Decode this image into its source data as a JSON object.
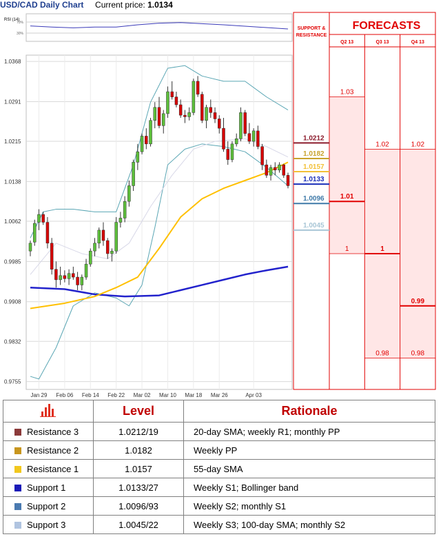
{
  "header": {
    "title": "USD/CAD Daily Chart",
    "price_label": "Current price:",
    "price_value": "1.0134"
  },
  "colors": {
    "red": "#e10000",
    "panel_bg": "#ffe6e6",
    "sma20": "#7f7fc6",
    "sma55": "#ffc000",
    "sma100": "#2222cc",
    "bollinger": "#5aa6b4",
    "bull": "#5dbe3b",
    "bear": "#d60000",
    "r3": "#8b1a2b",
    "r2": "#c8a22c",
    "r1": "#f2c037",
    "s1": "#1a2fb8",
    "s2": "#3f7aa8",
    "s3": "#a8c6d6"
  },
  "rsi": {
    "label": "RSI (14)",
    "levels": [
      "70%",
      "30%"
    ]
  },
  "chart_data": {
    "type": "candlestick",
    "ylim": [
      0.974,
      1.038
    ],
    "y_ticks": [
      "1.0368",
      "1.0291",
      "1.0215",
      "1.0138",
      "1.0062",
      "0.9985",
      "0.9908",
      "0.9832",
      "0.9755"
    ],
    "x_ticks": [
      "Jan 29",
      "Feb 06",
      "Feb 14",
      "Feb 22",
      "Mar 02",
      "Mar 10",
      "Mar 18",
      "Mar 26",
      "Apr 03"
    ],
    "candles": [
      [
        1.0005,
        1.0025,
        0.9995,
        1.002
      ],
      [
        1.0022,
        1.0065,
        1.0015,
        1.0058
      ],
      [
        1.006,
        1.0085,
        1.0045,
        1.0075
      ],
      [
        1.0075,
        1.008,
        1.0055,
        1.006
      ],
      [
        1.006,
        1.007,
        1.001,
        1.002
      ],
      [
        1.002,
        1.003,
        0.996,
        0.997
      ],
      [
        0.997,
        0.9985,
        0.9935,
        0.995
      ],
      [
        0.995,
        0.9975,
        0.994,
        0.9958
      ],
      [
        0.9958,
        0.9968,
        0.9945,
        0.9952
      ],
      [
        0.9952,
        0.997,
        0.994,
        0.9962
      ],
      [
        0.9962,
        0.9975,
        0.995,
        0.9955
      ],
      [
        0.9955,
        0.9965,
        0.993,
        0.994
      ],
      [
        0.994,
        0.996,
        0.993,
        0.9955
      ],
      [
        0.9955,
        0.999,
        0.995,
        0.998
      ],
      [
        0.998,
        1.001,
        0.9975,
        1.0005
      ],
      [
        1.0005,
        1.003,
        0.9995,
        1.002
      ],
      [
        1.002,
        1.005,
        1.001,
        1.0045
      ],
      [
        1.0045,
        1.006,
        1.0015,
        1.0025
      ],
      [
        1.0025,
        1.003,
        0.999,
        1.0
      ],
      [
        1.0,
        1.001,
        0.9985,
        1.0005
      ],
      [
        1.0005,
        1.007,
        1.0,
        1.006
      ],
      [
        1.006,
        1.008,
        1.005,
        1.0068
      ],
      [
        1.0068,
        1.011,
        1.006,
        1.01
      ],
      [
        1.01,
        1.014,
        1.009,
        1.013
      ],
      [
        1.013,
        1.018,
        1.012,
        1.0175
      ],
      [
        1.0175,
        1.021,
        1.016,
        1.0195
      ],
      [
        1.0195,
        1.023,
        1.019,
        1.0225
      ],
      [
        1.0225,
        1.024,
        1.02,
        1.021
      ],
      [
        1.021,
        1.026,
        1.0205,
        1.0255
      ],
      [
        1.0255,
        1.029,
        1.024,
        1.028
      ],
      [
        1.028,
        1.03,
        1.024,
        1.0245
      ],
      [
        1.0245,
        1.0275,
        1.023,
        1.0268
      ],
      [
        1.0268,
        1.032,
        1.026,
        1.031
      ],
      [
        1.031,
        1.033,
        1.0295,
        1.03
      ],
      [
        1.03,
        1.031,
        1.028,
        1.0285
      ],
      [
        1.0285,
        1.0295,
        1.026,
        1.0265
      ],
      [
        1.0265,
        1.0275,
        1.025,
        1.0262
      ],
      [
        1.0262,
        1.028,
        1.0255,
        1.027
      ],
      [
        1.027,
        1.0335,
        1.0265,
        1.033
      ],
      [
        1.033,
        1.034,
        1.03,
        1.0305
      ],
      [
        1.0305,
        1.031,
        1.025,
        1.0255
      ],
      [
        1.0255,
        1.0285,
        1.024,
        1.028
      ],
      [
        1.028,
        1.0295,
        1.026,
        1.027
      ],
      [
        1.027,
        1.028,
        1.025,
        1.0258
      ],
      [
        1.0258,
        1.0265,
        1.023,
        1.024
      ],
      [
        1.024,
        1.026,
        1.0195,
        1.02
      ],
      [
        1.02,
        1.0215,
        1.017,
        1.018
      ],
      [
        1.018,
        1.0215,
        1.0175,
        1.021
      ],
      [
        1.021,
        1.023,
        1.0205,
        1.022
      ],
      [
        1.022,
        1.028,
        1.0215,
        1.027
      ],
      [
        1.027,
        1.0275,
        1.0225,
        1.023
      ],
      [
        1.023,
        1.025,
        1.021,
        1.0215
      ],
      [
        1.0215,
        1.024,
        1.0205,
        1.0235
      ],
      [
        1.0235,
        1.0245,
        1.02,
        1.0205
      ],
      [
        1.0205,
        1.021,
        1.016,
        1.017
      ],
      [
        1.017,
        1.018,
        1.0145,
        1.015
      ],
      [
        1.015,
        1.017,
        1.014,
        1.0165
      ],
      [
        1.0165,
        1.0175,
        1.015,
        1.016
      ],
      [
        1.016,
        1.0175,
        1.0155,
        1.017
      ],
      [
        1.017,
        1.0172,
        1.0145,
        1.015
      ],
      [
        1.015,
        1.0155,
        1.0125,
        1.013
      ]
    ],
    "levels": [
      {
        "name": "Resistance 3",
        "value": 1.0212,
        "label": "1.0212",
        "color_key": "r3"
      },
      {
        "name": "Resistance 2",
        "value": 1.0182,
        "label": "1.0182",
        "color_key": "r2"
      },
      {
        "name": "Resistance 1",
        "value": 1.0157,
        "label": "1.0157",
        "color_key": "r1"
      },
      {
        "name": "Support 1",
        "value": 1.0133,
        "label": "1.0133",
        "color_key": "s1"
      },
      {
        "name": "Support 2",
        "value": 1.0096,
        "label": "1.0096",
        "color_key": "s2"
      },
      {
        "name": "Support 3",
        "value": 1.0045,
        "label": "1.0045",
        "color_key": "s3"
      }
    ],
    "sma20": [
      [
        0,
        0.996
      ],
      [
        6,
        1.002
      ],
      [
        12,
        1.0
      ],
      [
        18,
        0.999
      ],
      [
        23,
        1.002
      ],
      [
        28,
        1.009
      ],
      [
        33,
        1.015
      ],
      [
        38,
        1.02
      ],
      [
        43,
        1.0215
      ],
      [
        50,
        1.022
      ],
      [
        55,
        1.0205
      ],
      [
        60,
        1.0185
      ]
    ],
    "sma55": [
      [
        0,
        0.9895
      ],
      [
        8,
        0.9905
      ],
      [
        15,
        0.9918
      ],
      [
        20,
        0.9935
      ],
      [
        25,
        0.9955
      ],
      [
        30,
        1.001
      ],
      [
        35,
        1.007
      ],
      [
        40,
        1.0105
      ],
      [
        45,
        1.0125
      ],
      [
        50,
        1.014
      ],
      [
        55,
        1.0155
      ],
      [
        60,
        1.0175
      ]
    ],
    "sma100": [
      [
        0,
        0.9935
      ],
      [
        8,
        0.9932
      ],
      [
        15,
        0.9922
      ],
      [
        22,
        0.9918
      ],
      [
        30,
        0.992
      ],
      [
        35,
        0.993
      ],
      [
        40,
        0.994
      ],
      [
        45,
        0.995
      ],
      [
        50,
        0.996
      ],
      [
        55,
        0.9968
      ],
      [
        60,
        0.9975
      ]
    ],
    "boll_upper": [
      [
        0,
        1.003
      ],
      [
        3,
        1.008
      ],
      [
        6,
        1.0085
      ],
      [
        10,
        1.0085
      ],
      [
        15,
        1.008
      ],
      [
        20,
        1.008
      ],
      [
        24,
        1.017
      ],
      [
        28,
        1.029
      ],
      [
        32,
        1.0355
      ],
      [
        36,
        1.036
      ],
      [
        40,
        1.034
      ],
      [
        45,
        1.033
      ],
      [
        50,
        1.033
      ],
      [
        55,
        1.03
      ],
      [
        60,
        1.0275
      ]
    ],
    "boll_lower": [
      [
        0,
        0.9765
      ],
      [
        2,
        0.976
      ],
      [
        6,
        0.982
      ],
      [
        10,
        0.99
      ],
      [
        15,
        0.9925
      ],
      [
        20,
        0.9915
      ],
      [
        23,
        0.99
      ],
      [
        26,
        0.994
      ],
      [
        29,
        1.005
      ],
      [
        32,
        1.017
      ],
      [
        36,
        1.02
      ],
      [
        40,
        1.021
      ],
      [
        45,
        1.0205
      ],
      [
        50,
        1.0195
      ],
      [
        55,
        1.0165
      ],
      [
        60,
        1.013
      ]
    ],
    "rsi_line": [
      [
        0,
        56
      ],
      [
        5,
        52
      ],
      [
        10,
        49
      ],
      [
        15,
        52
      ],
      [
        20,
        52
      ],
      [
        25,
        60
      ],
      [
        30,
        66
      ],
      [
        35,
        68
      ],
      [
        40,
        64
      ],
      [
        45,
        60
      ],
      [
        50,
        55
      ],
      [
        55,
        50
      ],
      [
        60,
        45
      ]
    ]
  },
  "forecast": {
    "title": "FORECASTS",
    "sr_label": "SUPPORT & RESISTANCE",
    "quarters": [
      "Q2 13",
      "Q3 13",
      "Q4 13"
    ],
    "ylim": [
      0.974,
      1.038
    ],
    "values": [
      {
        "q": 0,
        "value": 1.03,
        "label": "1.03",
        "bold": false
      },
      {
        "q": 0,
        "value": 1.01,
        "label": "1.01",
        "bold": true
      },
      {
        "q": 0,
        "value": 1.0,
        "label": "1",
        "bold": false
      },
      {
        "q": 1,
        "value": 1.02,
        "label": "1.02",
        "bold": false
      },
      {
        "q": 1,
        "value": 1.0,
        "label": "1",
        "bold": true
      },
      {
        "q": 1,
        "value": 0.98,
        "label": "0.98",
        "bold": false
      },
      {
        "q": 2,
        "value": 1.02,
        "label": "1.02",
        "bold": false
      },
      {
        "q": 2,
        "value": 0.99,
        "label": "0.99",
        "bold": true
      },
      {
        "q": 2,
        "value": 0.98,
        "label": "0.98",
        "bold": false
      }
    ]
  },
  "table": {
    "headers": [
      "Level",
      "Rationale"
    ],
    "rows": [
      {
        "name": "Resistance 3",
        "level": "1.0212/19",
        "rationale": "20-day SMA; weekly R1; monthly PP",
        "color": "#8b3a3a"
      },
      {
        "name": "Resistance 2",
        "level": "1.0182",
        "rationale": "Weekly PP",
        "color": "#c8961e"
      },
      {
        "name": "Resistance 1",
        "level": "1.0157",
        "rationale": "55-day SMA",
        "color": "#f2c81e"
      },
      {
        "name": "Support 1",
        "level": "1.0133/27",
        "rationale": "Weekly S1; Bollinger band",
        "color": "#1a1ab8"
      },
      {
        "name": "Support 2",
        "level": "1.0096/93",
        "rationale": "Weekly S2; monthly S1",
        "color": "#4a7ab0"
      },
      {
        "name": "Support 3",
        "level": "1.0045/22",
        "rationale": "Weekly S3; 100-day SMA; monthly S2",
        "color": "#b0c4e0"
      }
    ]
  }
}
